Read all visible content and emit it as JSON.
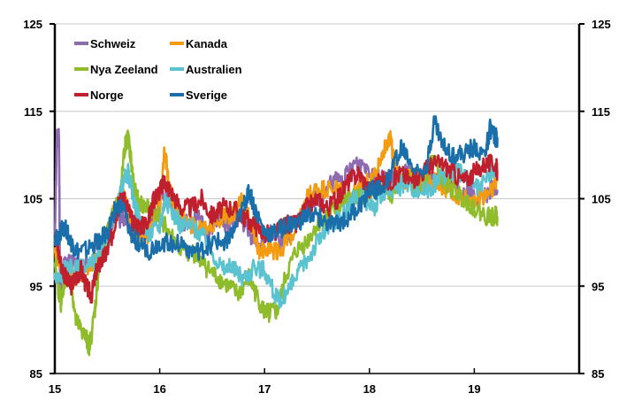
{
  "chart_data": {
    "type": "line",
    "title": "",
    "xlabel": "",
    "ylabel": "",
    "xlim": [
      15,
      20
    ],
    "ylim": [
      85,
      125
    ],
    "x_ticks": [
      "15",
      "16",
      "17",
      "18",
      "19"
    ],
    "y_ticks": [
      "85",
      "95",
      "105",
      "115",
      "125"
    ],
    "y_ticks_right": [
      "85",
      "95",
      "105",
      "115",
      "125"
    ],
    "grid": "horizontal",
    "legend": "top-left",
    "series": [
      {
        "name": "Schweiz",
        "color": "#8e6bb0",
        "points": [
          [
            15.0,
            101
          ],
          [
            15.02,
            112
          ],
          [
            15.04,
            112
          ],
          [
            15.05,
            94
          ],
          [
            15.08,
            97
          ],
          [
            15.15,
            98
          ],
          [
            15.25,
            97
          ],
          [
            15.35,
            98
          ],
          [
            15.45,
            100
          ],
          [
            15.55,
            102
          ],
          [
            15.65,
            103
          ],
          [
            15.75,
            102
          ],
          [
            15.85,
            101
          ],
          [
            15.95,
            103
          ],
          [
            16.05,
            106
          ],
          [
            16.15,
            104
          ],
          [
            16.25,
            102
          ],
          [
            16.35,
            103
          ],
          [
            16.45,
            101
          ],
          [
            16.55,
            103
          ],
          [
            16.65,
            102
          ],
          [
            16.75,
            103
          ],
          [
            16.85,
            101
          ],
          [
            16.95,
            100
          ],
          [
            17.05,
            101
          ],
          [
            17.15,
            100
          ],
          [
            17.25,
            101
          ],
          [
            17.35,
            103
          ],
          [
            17.45,
            105
          ],
          [
            17.55,
            105
          ],
          [
            17.65,
            107
          ],
          [
            17.75,
            107
          ],
          [
            17.85,
            109
          ],
          [
            17.95,
            109
          ],
          [
            18.05,
            108
          ],
          [
            18.15,
            107
          ],
          [
            18.25,
            107
          ],
          [
            18.35,
            108
          ],
          [
            18.45,
            107
          ],
          [
            18.55,
            108
          ],
          [
            18.65,
            107
          ],
          [
            18.75,
            107
          ],
          [
            18.85,
            106
          ],
          [
            18.95,
            106
          ],
          [
            19.05,
            105
          ],
          [
            19.15,
            106
          ],
          [
            19.22,
            106
          ]
        ]
      },
      {
        "name": "Kanada",
        "color": "#f39c12",
        "points": [
          [
            15.0,
            99
          ],
          [
            15.05,
            97
          ],
          [
            15.1,
            96
          ],
          [
            15.2,
            96
          ],
          [
            15.3,
            97
          ],
          [
            15.4,
            98
          ],
          [
            15.5,
            101
          ],
          [
            15.58,
            104
          ],
          [
            15.65,
            106
          ],
          [
            15.72,
            103
          ],
          [
            15.8,
            101
          ],
          [
            15.9,
            101
          ],
          [
            16.0,
            104
          ],
          [
            16.05,
            111
          ],
          [
            16.08,
            107
          ],
          [
            16.12,
            105
          ],
          [
            16.2,
            103
          ],
          [
            16.3,
            102
          ],
          [
            16.4,
            102
          ],
          [
            16.5,
            102
          ],
          [
            16.6,
            103
          ],
          [
            16.7,
            103
          ],
          [
            16.8,
            105
          ],
          [
            16.9,
            101
          ],
          [
            16.95,
            99
          ],
          [
            17.05,
            99
          ],
          [
            17.15,
            99
          ],
          [
            17.2,
            100
          ],
          [
            17.3,
            101
          ],
          [
            17.4,
            105
          ],
          [
            17.5,
            106
          ],
          [
            17.6,
            106
          ],
          [
            17.7,
            106
          ],
          [
            17.8,
            105
          ],
          [
            17.9,
            106
          ],
          [
            18.0,
            107
          ],
          [
            18.1,
            109
          ],
          [
            18.18,
            112
          ],
          [
            18.2,
            112
          ],
          [
            18.25,
            108
          ],
          [
            18.35,
            107
          ],
          [
            18.45,
            108
          ],
          [
            18.55,
            107
          ],
          [
            18.65,
            107
          ],
          [
            18.75,
            106
          ],
          [
            18.85,
            105
          ],
          [
            18.95,
            105
          ],
          [
            19.05,
            105
          ],
          [
            19.15,
            106
          ],
          [
            19.22,
            107
          ]
        ]
      },
      {
        "name": "Nya Zeeland",
        "color": "#8fbc2b",
        "points": [
          [
            15.0,
            98
          ],
          [
            15.03,
            95
          ],
          [
            15.06,
            93
          ],
          [
            15.1,
            96
          ],
          [
            15.15,
            96
          ],
          [
            15.2,
            91
          ],
          [
            15.25,
            90
          ],
          [
            15.3,
            89
          ],
          [
            15.33,
            88
          ],
          [
            15.38,
            92
          ],
          [
            15.42,
            97
          ],
          [
            15.48,
            100
          ],
          [
            15.52,
            102
          ],
          [
            15.58,
            104
          ],
          [
            15.62,
            105
          ],
          [
            15.67,
            111
          ],
          [
            15.7,
            112
          ],
          [
            15.74,
            108
          ],
          [
            15.78,
            105
          ],
          [
            15.85,
            104
          ],
          [
            15.9,
            104
          ],
          [
            16.0,
            103
          ],
          [
            16.1,
            101
          ],
          [
            16.2,
            99
          ],
          [
            16.3,
            99
          ],
          [
            16.4,
            98
          ],
          [
            16.45,
            97
          ],
          [
            16.55,
            96
          ],
          [
            16.65,
            95
          ],
          [
            16.75,
            94
          ],
          [
            16.85,
            96
          ],
          [
            16.92,
            94
          ],
          [
            17.0,
            92
          ],
          [
            17.05,
            92
          ],
          [
            17.12,
            92
          ],
          [
            17.2,
            96
          ],
          [
            17.3,
            99
          ],
          [
            17.4,
            100
          ],
          [
            17.5,
            102
          ],
          [
            17.6,
            103
          ],
          [
            17.7,
            104
          ],
          [
            17.8,
            105
          ],
          [
            17.9,
            105
          ],
          [
            18.0,
            106
          ],
          [
            18.1,
            106
          ],
          [
            18.2,
            105
          ],
          [
            18.3,
            107
          ],
          [
            18.4,
            107
          ],
          [
            18.5,
            106
          ],
          [
            18.6,
            110
          ],
          [
            18.7,
            107
          ],
          [
            18.8,
            106
          ],
          [
            18.9,
            105
          ],
          [
            19.0,
            104
          ],
          [
            19.1,
            103
          ],
          [
            19.2,
            103
          ],
          [
            19.22,
            103
          ]
        ]
      },
      {
        "name": "Australien",
        "color": "#5bc3cf",
        "points": [
          [
            15.0,
            96
          ],
          [
            15.05,
            96
          ],
          [
            15.1,
            97
          ],
          [
            15.2,
            97
          ],
          [
            15.3,
            97
          ],
          [
            15.4,
            98
          ],
          [
            15.5,
            100
          ],
          [
            15.58,
            103
          ],
          [
            15.65,
            107
          ],
          [
            15.7,
            108
          ],
          [
            15.75,
            105
          ],
          [
            15.82,
            102
          ],
          [
            15.9,
            101
          ],
          [
            16.0,
            102
          ],
          [
            16.05,
            105
          ],
          [
            16.1,
            104
          ],
          [
            16.2,
            102
          ],
          [
            16.3,
            102
          ],
          [
            16.4,
            101
          ],
          [
            16.5,
            99
          ],
          [
            16.6,
            97
          ],
          [
            16.7,
            97
          ],
          [
            16.8,
            96
          ],
          [
            16.9,
            97
          ],
          [
            17.0,
            97
          ],
          [
            17.1,
            94
          ],
          [
            17.15,
            93
          ],
          [
            17.25,
            95
          ],
          [
            17.35,
            97
          ],
          [
            17.45,
            99
          ],
          [
            17.55,
            101
          ],
          [
            17.65,
            102
          ],
          [
            17.75,
            103
          ],
          [
            17.85,
            105
          ],
          [
            17.95,
            105
          ],
          [
            18.05,
            104
          ],
          [
            18.15,
            106
          ],
          [
            18.25,
            106
          ],
          [
            18.35,
            107
          ],
          [
            18.45,
            106
          ],
          [
            18.55,
            106
          ],
          [
            18.65,
            107
          ],
          [
            18.75,
            108
          ],
          [
            18.85,
            108
          ],
          [
            18.95,
            107
          ],
          [
            19.05,
            106
          ],
          [
            19.15,
            108
          ],
          [
            19.22,
            108
          ]
        ]
      },
      {
        "name": "Norge",
        "color": "#c0202d",
        "points": [
          [
            15.0,
            101
          ],
          [
            15.05,
            98
          ],
          [
            15.1,
            96
          ],
          [
            15.15,
            95
          ],
          [
            15.2,
            96
          ],
          [
            15.25,
            97
          ],
          [
            15.3,
            95
          ],
          [
            15.35,
            94
          ],
          [
            15.4,
            97
          ],
          [
            15.45,
            98
          ],
          [
            15.5,
            99
          ],
          [
            15.55,
            101
          ],
          [
            15.6,
            104
          ],
          [
            15.65,
            105
          ],
          [
            15.7,
            104
          ],
          [
            15.75,
            102
          ],
          [
            15.8,
            102
          ],
          [
            15.85,
            102
          ],
          [
            15.9,
            103
          ],
          [
            15.95,
            105
          ],
          [
            16.0,
            106
          ],
          [
            16.05,
            107
          ],
          [
            16.1,
            106
          ],
          [
            16.2,
            104
          ],
          [
            16.3,
            104
          ],
          [
            16.4,
            105
          ],
          [
            16.5,
            103
          ],
          [
            16.6,
            104
          ],
          [
            16.7,
            104
          ],
          [
            16.8,
            103
          ],
          [
            16.9,
            102
          ],
          [
            17.0,
            101
          ],
          [
            17.1,
            101
          ],
          [
            17.2,
            102
          ],
          [
            17.3,
            102
          ],
          [
            17.4,
            104
          ],
          [
            17.5,
            105
          ],
          [
            17.6,
            104
          ],
          [
            17.7,
            105
          ],
          [
            17.8,
            107
          ],
          [
            17.9,
            108
          ],
          [
            18.0,
            106
          ],
          [
            18.1,
            107
          ],
          [
            18.2,
            107
          ],
          [
            18.3,
            108
          ],
          [
            18.4,
            107
          ],
          [
            18.5,
            108
          ],
          [
            18.6,
            109
          ],
          [
            18.7,
            109
          ],
          [
            18.8,
            108
          ],
          [
            18.9,
            107
          ],
          [
            19.0,
            108
          ],
          [
            19.1,
            109
          ],
          [
            19.2,
            109
          ],
          [
            19.22,
            108
          ]
        ]
      },
      {
        "name": "Sverige",
        "color": "#1a6faa",
        "points": [
          [
            15.0,
            100
          ],
          [
            15.05,
            101
          ],
          [
            15.1,
            102
          ],
          [
            15.15,
            100
          ],
          [
            15.2,
            99
          ],
          [
            15.3,
            99
          ],
          [
            15.4,
            100
          ],
          [
            15.5,
            101
          ],
          [
            15.58,
            104
          ],
          [
            15.65,
            104
          ],
          [
            15.72,
            101
          ],
          [
            15.8,
            100
          ],
          [
            15.9,
            99
          ],
          [
            16.0,
            100
          ],
          [
            16.1,
            100
          ],
          [
            16.2,
            100
          ],
          [
            16.3,
            99
          ],
          [
            16.4,
            99
          ],
          [
            16.5,
            100
          ],
          [
            16.6,
            100
          ],
          [
            16.7,
            101
          ],
          [
            16.8,
            104
          ],
          [
            16.85,
            106
          ],
          [
            16.9,
            104
          ],
          [
            17.0,
            101
          ],
          [
            17.1,
            101
          ],
          [
            17.2,
            102
          ],
          [
            17.3,
            102
          ],
          [
            17.4,
            103
          ],
          [
            17.5,
            103
          ],
          [
            17.6,
            102
          ],
          [
            17.7,
            102
          ],
          [
            17.8,
            103
          ],
          [
            17.9,
            104
          ],
          [
            18.0,
            106
          ],
          [
            18.1,
            106
          ],
          [
            18.2,
            108
          ],
          [
            18.3,
            111
          ],
          [
            18.35,
            110
          ],
          [
            18.45,
            108
          ],
          [
            18.55,
            109
          ],
          [
            18.62,
            114
          ],
          [
            18.7,
            111
          ],
          [
            18.8,
            110
          ],
          [
            18.9,
            110
          ],
          [
            19.0,
            111
          ],
          [
            19.1,
            110
          ],
          [
            19.15,
            113
          ],
          [
            19.2,
            112
          ],
          [
            19.22,
            112
          ]
        ]
      }
    ]
  }
}
